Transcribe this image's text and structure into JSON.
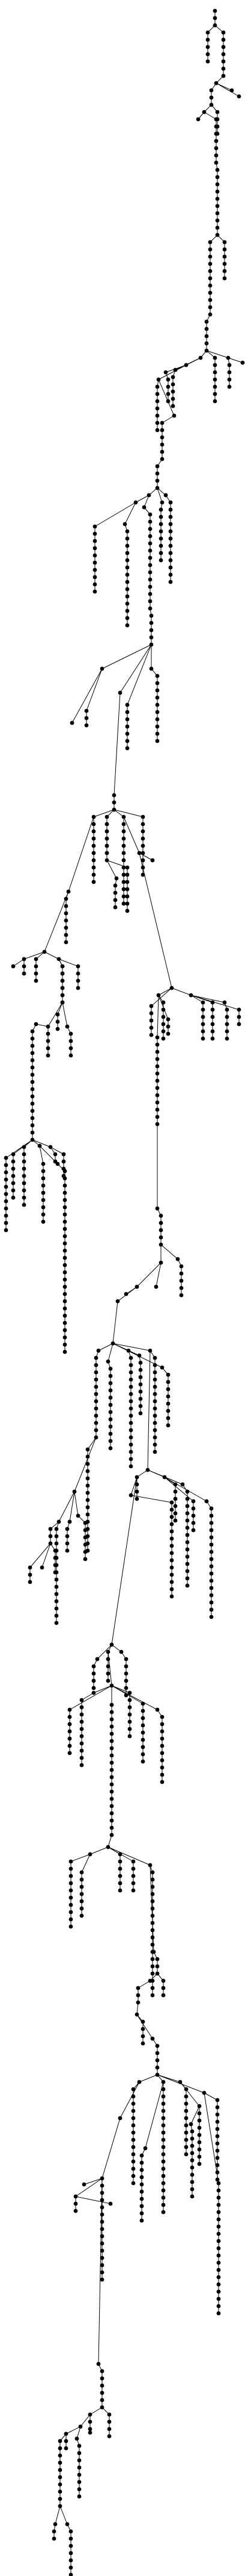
{
  "diagram": {
    "type": "tree",
    "background": "#ffffff",
    "node_color": "#000000",
    "edge_color": "#000000",
    "labels_shown": false
  }
}
